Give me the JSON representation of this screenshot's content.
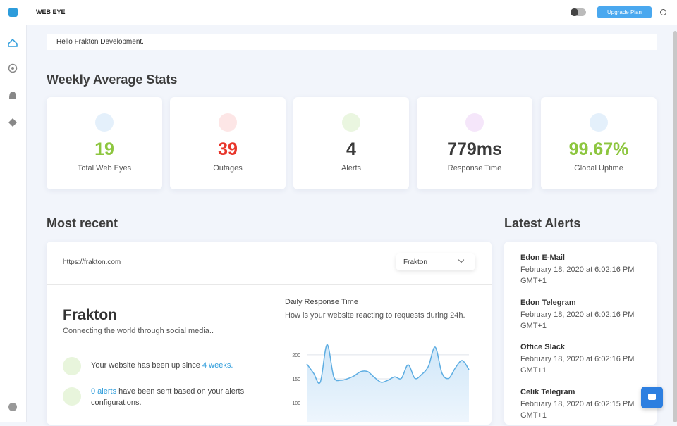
{
  "header": {
    "brand": "WEB EYE",
    "button": "Upgrade Plan"
  },
  "greeting": "Hello Frakton Development.",
  "stats_title": "Weekly Average Stats",
  "stats": [
    {
      "value": "19",
      "label": "Total Web Eyes",
      "color": "#8dc63f"
    },
    {
      "value": "39",
      "label": "Outages",
      "color": "#e8352a"
    },
    {
      "value": "4",
      "label": "Alerts",
      "color": "#3a3a3a"
    },
    {
      "value": "779ms",
      "label": "Response Time",
      "color": "#3a3a3a"
    },
    {
      "value": "99.67%",
      "label": "Global Uptime",
      "color": "#8dc63f"
    }
  ],
  "most_recent": {
    "title": "Most recent",
    "url": "https://frakton.com",
    "dropdown": "Frakton",
    "name": "Frakton",
    "tagline": "Connecting the world through social media..",
    "up_text": "Your website has been up since ",
    "up_link": "4 weeks.",
    "alerts_link": "0 alerts",
    "alerts_text": " have been sent based on your alerts configurations."
  },
  "chart_data": {
    "type": "line",
    "title": "Daily Response Time",
    "subtitle": "How is your website reacting to requests during 24h.",
    "values": [
      181,
      162,
      143,
      221,
      154,
      147,
      150,
      156,
      165,
      165,
      153,
      143,
      147,
      154,
      151,
      179,
      151,
      159,
      176,
      216,
      162,
      151,
      173,
      188,
      169
    ],
    "color": "#5dade2",
    "ylim": [
      59,
      235
    ],
    "yticks": [
      100,
      150,
      200
    ],
    "grid": true
  },
  "latest_alerts": {
    "title": "Latest Alerts",
    "items": [
      {
        "name": "Edon E-Mail",
        "date": "February 18, 2020 at 6:02:16 PM GMT+1"
      },
      {
        "name": "Edon Telegram",
        "date": "February 18, 2020 at 6:02:16 PM GMT+1"
      },
      {
        "name": "Office Slack",
        "date": "February 18, 2020 at 6:02:16 PM GMT+1"
      },
      {
        "name": "Celik Telegram",
        "date": "February 18, 2020 at 6:02:15 PM GMT+1"
      }
    ]
  }
}
